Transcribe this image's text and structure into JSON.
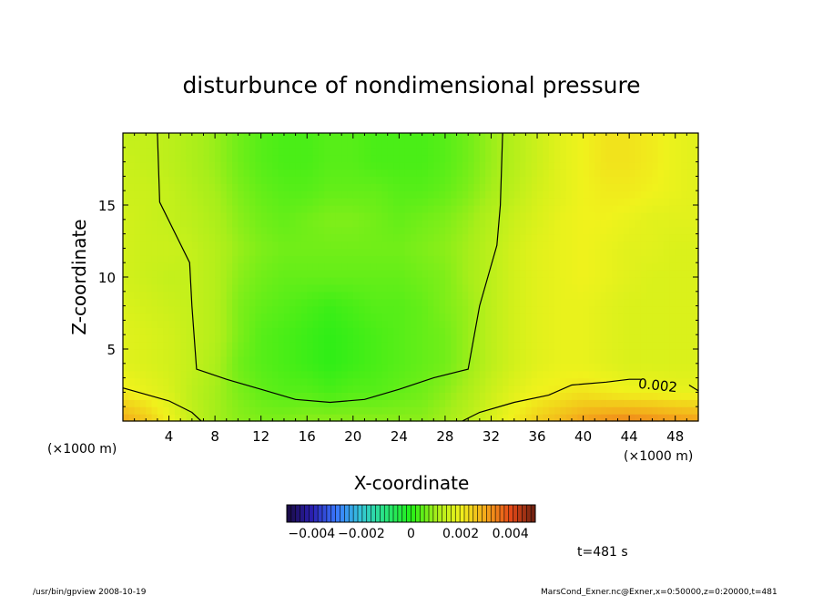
{
  "chart_data": {
    "type": "heatmap",
    "title": "disturbunce of nondimensional pressure",
    "xlabel": "X-coordinate",
    "ylabel": "Z-coordinate",
    "x_unit": "(×1000 m)",
    "x_unit_left": "(×1000 m)",
    "xlim": [
      0,
      50
    ],
    "ylim": [
      0,
      20
    ],
    "x_ticks": [
      4,
      8,
      12,
      16,
      20,
      24,
      28,
      32,
      36,
      40,
      44,
      48
    ],
    "x_tick_labels": [
      "4",
      "8",
      "12",
      "16",
      "20",
      "24",
      "28",
      "32",
      "36",
      "40",
      "44",
      "48"
    ],
    "y_ticks": [
      5,
      10,
      15
    ],
    "y_tick_labels": [
      "5",
      "10",
      "15"
    ],
    "x": [
      0,
      2,
      4,
      6,
      8,
      10,
      12,
      14,
      16,
      18,
      20,
      22,
      24,
      26,
      28,
      30,
      32,
      34,
      36,
      38,
      40,
      42,
      44,
      46,
      48,
      50
    ],
    "y": [
      0,
      2,
      4,
      6,
      8,
      10,
      12,
      14,
      16,
      18,
      20
    ],
    "z": [
      [
        0.003,
        0.0026,
        0.002,
        0.0014,
        0.001,
        0.0008,
        0.0007,
        0.0007,
        0.0008,
        0.0008,
        0.0008,
        0.0008,
        0.0008,
        0.0008,
        0.001,
        0.0013,
        0.0017,
        0.0021,
        0.0025,
        0.0028,
        0.0031,
        0.0033,
        0.0034,
        0.0033,
        0.0032,
        0.0031
      ],
      [
        0.0021,
        0.0019,
        0.0017,
        0.0013,
        0.001,
        0.0007,
        0.0005,
        0.0004,
        0.0004,
        0.0003,
        0.0004,
        0.0004,
        0.0005,
        0.0006,
        0.0008,
        0.0011,
        0.0015,
        0.0018,
        0.002,
        0.0021,
        0.0022,
        0.0021,
        0.002,
        0.002,
        0.0019,
        0.0019
      ],
      [
        0.0018,
        0.0017,
        0.0016,
        0.0014,
        0.0011,
        0.0006,
        0.0004,
        0.0003,
        0.0002,
        0.0001,
        0.0002,
        0.0003,
        0.0004,
        0.0005,
        0.0006,
        0.0009,
        0.0013,
        0.0016,
        0.0018,
        0.0019,
        0.0019,
        0.0018,
        0.0017,
        0.0017,
        0.0017,
        0.0017
      ],
      [
        0.0018,
        0.0017,
        0.0016,
        0.0014,
        0.0012,
        0.0007,
        0.0004,
        0.0003,
        0.0002,
        0.0001,
        0.0002,
        0.0003,
        0.0004,
        0.0005,
        0.0006,
        0.0009,
        0.0013,
        0.0016,
        0.0018,
        0.0019,
        0.0019,
        0.0018,
        0.0017,
        0.0017,
        0.0017,
        0.0017
      ],
      [
        0.0017,
        0.0016,
        0.0015,
        0.0014,
        0.0012,
        0.0007,
        0.0005,
        0.0004,
        0.0003,
        0.0002,
        0.0003,
        0.0004,
        0.0004,
        0.0005,
        0.0007,
        0.0009,
        0.0013,
        0.0016,
        0.0018,
        0.0019,
        0.0019,
        0.0018,
        0.0017,
        0.0017,
        0.0017,
        0.0017
      ],
      [
        0.0016,
        0.0015,
        0.0014,
        0.0014,
        0.0012,
        0.0008,
        0.0006,
        0.0005,
        0.0005,
        0.0005,
        0.0005,
        0.0005,
        0.0005,
        0.0006,
        0.0007,
        0.001,
        0.0013,
        0.0016,
        0.0018,
        0.0019,
        0.002,
        0.0019,
        0.0018,
        0.0017,
        0.0017,
        0.0017
      ],
      [
        0.0016,
        0.0015,
        0.0015,
        0.0014,
        0.0012,
        0.0009,
        0.0007,
        0.0006,
        0.0006,
        0.0006,
        0.0006,
        0.0006,
        0.0006,
        0.0007,
        0.0008,
        0.001,
        0.0013,
        0.0016,
        0.0018,
        0.0019,
        0.002,
        0.0019,
        0.0018,
        0.0018,
        0.0017,
        0.0017
      ],
      [
        0.0016,
        0.0015,
        0.0014,
        0.0013,
        0.0011,
        0.0008,
        0.0006,
        0.0005,
        0.0006,
        0.0007,
        0.0007,
        0.0006,
        0.0005,
        0.0006,
        0.0007,
        0.0009,
        0.0012,
        0.0015,
        0.0017,
        0.0019,
        0.002,
        0.002,
        0.0019,
        0.0018,
        0.0018,
        0.0018
      ],
      [
        0.0015,
        0.0015,
        0.0014,
        0.0012,
        0.001,
        0.0007,
        0.0005,
        0.0004,
        0.0004,
        0.0005,
        0.0005,
        0.0005,
        0.0004,
        0.0004,
        0.0005,
        0.0007,
        0.001,
        0.0013,
        0.0016,
        0.0018,
        0.002,
        0.0021,
        0.0021,
        0.002,
        0.0019,
        0.0018
      ],
      [
        0.0015,
        0.0014,
        0.0013,
        0.0011,
        0.0009,
        0.0006,
        0.0004,
        0.0003,
        0.0003,
        0.0004,
        0.0004,
        0.0003,
        0.0003,
        0.0003,
        0.0004,
        0.0006,
        0.0009,
        0.0012,
        0.0015,
        0.0018,
        0.002,
        0.0022,
        0.0022,
        0.0021,
        0.0019,
        0.0018
      ],
      [
        0.0014,
        0.0014,
        0.0013,
        0.0011,
        0.0009,
        0.0006,
        0.0004,
        0.0003,
        0.0003,
        0.0004,
        0.0004,
        0.0003,
        0.0003,
        0.0003,
        0.0004,
        0.0006,
        0.0009,
        0.0012,
        0.0015,
        0.0018,
        0.002,
        0.0022,
        0.0022,
        0.0021,
        0.0019,
        0.0018
      ]
    ],
    "contours": [
      {
        "level": 0.001,
        "points": [
          [
            0,
            2.3
          ],
          [
            4,
            1.4
          ],
          [
            6,
            0.6
          ],
          [
            6.8,
            0
          ]
        ]
      },
      {
        "level": 0.001,
        "points": [
          [
            3,
            20
          ],
          [
            3.2,
            15.2
          ],
          [
            5.8,
            11
          ],
          [
            6,
            8
          ],
          [
            6.4,
            3.6
          ],
          [
            9,
            2.9
          ],
          [
            12,
            2.2
          ],
          [
            15,
            1.5
          ],
          [
            18,
            1.3
          ],
          [
            21,
            1.5
          ],
          [
            24,
            2.2
          ],
          [
            27,
            3
          ],
          [
            30,
            3.6
          ],
          [
            31,
            8
          ],
          [
            32.5,
            12.2
          ],
          [
            32.8,
            15
          ],
          [
            33,
            20
          ]
        ]
      },
      {
        "level": 0.001,
        "points": [
          [
            29.5,
            0
          ],
          [
            31,
            0.6
          ],
          [
            34,
            1.3
          ],
          [
            37,
            1.8
          ],
          [
            39,
            2.5
          ],
          [
            42,
            2.7
          ],
          [
            44,
            2.9
          ],
          [
            45,
            2.9
          ]
        ]
      },
      {
        "level": 0.002,
        "points": [
          [
            49.2,
            2.5
          ],
          [
            50,
            2.1
          ]
        ]
      }
    ],
    "contour_label": "0.002",
    "colorbar": {
      "min": -0.005,
      "max": 0.005,
      "tick_values": [
        -0.004,
        -0.002,
        0,
        0.002,
        0.004
      ],
      "tick_labels": [
        "−0.004",
        "−0.002",
        "0",
        "0.002",
        "0.004"
      ],
      "colors": [
        "#1a0a40",
        "#2a1fb0",
        "#3a78ff",
        "#34c8d8",
        "#28e67a",
        "#22ee16",
        "#a6ee1a",
        "#f0f21c",
        "#f4a81a",
        "#e64a18",
        "#6a1f10"
      ]
    },
    "grid": false,
    "legend": "bottom"
  },
  "annotations": {
    "time_label": "t=481 s",
    "footer_left": "/usr/bin/gpview   2008-10-19",
    "footer_right": "MarsCond_Exner.nc@Exner,x=0:50000,z=0:20000,t=481"
  }
}
